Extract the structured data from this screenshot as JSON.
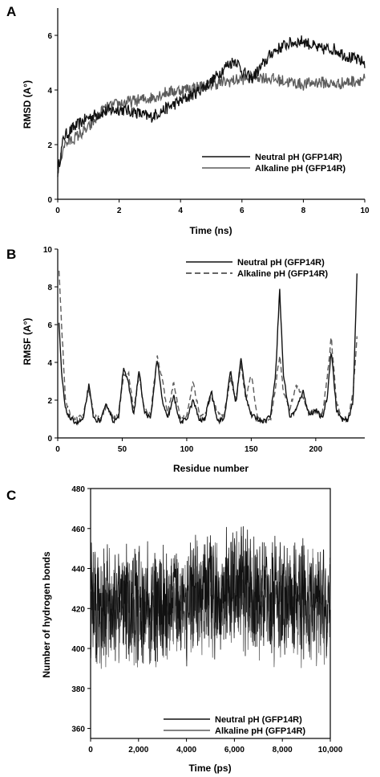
{
  "figure": {
    "colors": {
      "neutral": "#111111",
      "alkaline": "#5c5c5c",
      "axis": "#000000"
    },
    "panels": [
      {
        "id": "A",
        "letter": "A",
        "xlabel": "Time (ns)",
        "ylabel": "RMSD (A°)",
        "xticks": [
          "0",
          "2",
          "4",
          "6",
          "8",
          "10"
        ],
        "yticks": [
          "0",
          "2",
          "4",
          "6"
        ],
        "legend": [
          "Neutral pH (GFP14R)",
          "Alkaline pH (GFP14R)"
        ]
      },
      {
        "id": "B",
        "letter": "B",
        "xlabel": "Residue number",
        "ylabel": "RMSF (A°)",
        "xticks": [
          "0",
          "50",
          "100",
          "150",
          "200"
        ],
        "yticks": [
          "0",
          "2",
          "4",
          "6",
          "8",
          "10"
        ],
        "legend": [
          "Neutral pH (GFP14R)",
          "Alkaline pH (GFP14R)"
        ]
      },
      {
        "id": "C",
        "letter": "C",
        "xlabel": "Time (ps)",
        "ylabel": "Number of hydrogen bonds",
        "xticks": [
          "0",
          "2,000",
          "4,000",
          "6,000",
          "8,000",
          "10,000"
        ],
        "yticks": [
          "360",
          "380",
          "400",
          "420",
          "440",
          "460",
          "480"
        ],
        "legend": [
          "Neutral pH (GFP14R)",
          "Alkaline pH (GFP14R)"
        ]
      }
    ]
  },
  "chart_data": [
    {
      "type": "line",
      "title": "",
      "xlabel": "Time (ns)",
      "ylabel": "RMSD (A°)",
      "xlim": [
        0,
        10
      ],
      "ylim": [
        0,
        7
      ],
      "legend_position": "center-right",
      "grid": false,
      "series": [
        {
          "name": "Neutral pH (GFP14R)",
          "x": [
            0,
            0.2,
            0.5,
            1,
            1.5,
            2,
            2.5,
            3,
            3.5,
            4,
            4.5,
            5,
            5.5,
            5.8,
            6,
            6.3,
            6.6,
            7,
            7.5,
            8,
            8.5,
            9,
            9.5,
            10
          ],
          "values": [
            1.0,
            2.3,
            2.6,
            3.0,
            3.2,
            3.3,
            3.2,
            3.0,
            3.3,
            3.6,
            3.9,
            4.3,
            4.9,
            5.1,
            4.7,
            4.4,
            4.8,
            5.4,
            5.7,
            5.8,
            5.5,
            5.5,
            5.2,
            5.0
          ]
        },
        {
          "name": "Alkaline pH (GFP14R)",
          "x": [
            0,
            0.2,
            0.5,
            1,
            1.5,
            2,
            2.5,
            3,
            3.5,
            4,
            4.5,
            5,
            5.5,
            6,
            6.5,
            7,
            7.5,
            8,
            8.5,
            9,
            9.5,
            10
          ],
          "values": [
            1.0,
            2.0,
            2.2,
            2.6,
            3.3,
            3.5,
            3.6,
            3.7,
            3.9,
            4.0,
            4.1,
            4.2,
            4.3,
            4.4,
            4.5,
            4.4,
            4.3,
            4.2,
            4.3,
            4.2,
            4.3,
            4.4
          ]
        }
      ]
    },
    {
      "type": "line",
      "title": "",
      "xlabel": "Residue number",
      "ylabel": "RMSF (A°)",
      "xlim": [
        0,
        238
      ],
      "ylim": [
        0,
        10
      ],
      "legend_position": "top-right",
      "grid": false,
      "series": [
        {
          "name": "Neutral pH (GFP14R)",
          "x": [
            1,
            3,
            6,
            10,
            15,
            20,
            24,
            28,
            33,
            38,
            43,
            47,
            51,
            55,
            59,
            63,
            67,
            72,
            77,
            81,
            85,
            90,
            95,
            100,
            105,
            110,
            114,
            119,
            124,
            129,
            134,
            138,
            142,
            146,
            150,
            155,
            160,
            165,
            169,
            172,
            175,
            180,
            185,
            190,
            195,
            200,
            205,
            209,
            212,
            216,
            220,
            225,
            229,
            232
          ],
          "values": [
            6.0,
            3.4,
            1.5,
            1.0,
            0.8,
            1.0,
            2.8,
            1.0,
            0.9,
            1.8,
            0.9,
            1.0,
            3.8,
            2.8,
            1.2,
            3.6,
            1.4,
            1.0,
            4.2,
            2.0,
            1.0,
            2.2,
            0.8,
            1.0,
            2.0,
            0.9,
            1.0,
            2.5,
            0.9,
            1.0,
            3.6,
            1.8,
            4.2,
            2.2,
            1.2,
            1.0,
            0.9,
            1.2,
            3.5,
            7.9,
            3.3,
            1.1,
            1.5,
            2.5,
            1.2,
            1.5,
            1.0,
            2.2,
            4.7,
            1.5,
            1.0,
            0.9,
            2.0,
            8.8
          ]
        },
        {
          "name": "Alkaline pH (GFP14R)",
          "x": [
            1,
            3,
            6,
            10,
            15,
            20,
            24,
            28,
            33,
            38,
            43,
            47,
            51,
            55,
            59,
            63,
            67,
            72,
            77,
            81,
            85,
            90,
            95,
            100,
            105,
            110,
            114,
            119,
            124,
            129,
            134,
            138,
            142,
            146,
            150,
            155,
            160,
            165,
            169,
            172,
            175,
            180,
            185,
            190,
            195,
            200,
            205,
            209,
            212,
            216,
            220,
            225,
            229,
            232
          ],
          "values": [
            8.9,
            6.0,
            2.0,
            1.1,
            1.0,
            1.2,
            2.6,
            1.2,
            1.0,
            1.7,
            1.0,
            1.2,
            3.3,
            3.4,
            1.5,
            3.3,
            1.6,
            1.2,
            4.3,
            3.2,
            1.2,
            3.0,
            1.0,
            1.2,
            3.0,
            1.2,
            1.2,
            2.2,
            1.3,
            1.2,
            3.2,
            2.0,
            3.9,
            2.0,
            3.4,
            1.0,
            0.8,
            0.9,
            2.8,
            4.4,
            2.4,
            1.6,
            2.8,
            2.2,
            1.3,
            1.4,
            1.2,
            3.3,
            5.3,
            2.0,
            1.0,
            1.0,
            2.5,
            5.3
          ]
        }
      ]
    },
    {
      "type": "line",
      "title": "",
      "xlabel": "Time (ps)",
      "ylabel": "Number of hydrogen bonds",
      "xlim": [
        0,
        10000
      ],
      "ylim": [
        355,
        480
      ],
      "legend_position": "bottom-center",
      "grid": false,
      "series": [
        {
          "name": "Neutral pH (GFP14R)",
          "x": [
            0,
            500,
            1000,
            1500,
            2000,
            2500,
            3000,
            3500,
            4000,
            4500,
            5000,
            5500,
            6000,
            6500,
            7000,
            7500,
            8000,
            8500,
            9000,
            9500,
            10000
          ],
          "values": [
            418,
            420,
            417,
            419,
            418,
            416,
            417,
            419,
            420,
            421,
            423,
            424,
            425,
            424,
            422,
            421,
            420,
            419,
            418,
            417,
            418
          ],
          "fluctuation_range": [
            -30,
            40
          ]
        },
        {
          "name": "Alkaline pH (GFP14R)",
          "x": [
            0,
            500,
            1000,
            1500,
            2000,
            2500,
            3000,
            3500,
            4000,
            4500,
            5000,
            5500,
            6000,
            6500,
            7000,
            7500,
            8000,
            8500,
            9000,
            9500,
            10000
          ],
          "values": [
            415,
            416,
            418,
            417,
            415,
            414,
            416,
            418,
            419,
            420,
            422,
            422,
            423,
            422,
            420,
            419,
            419,
            418,
            417,
            416,
            416
          ],
          "fluctuation_range": [
            -30,
            35
          ]
        }
      ]
    }
  ]
}
